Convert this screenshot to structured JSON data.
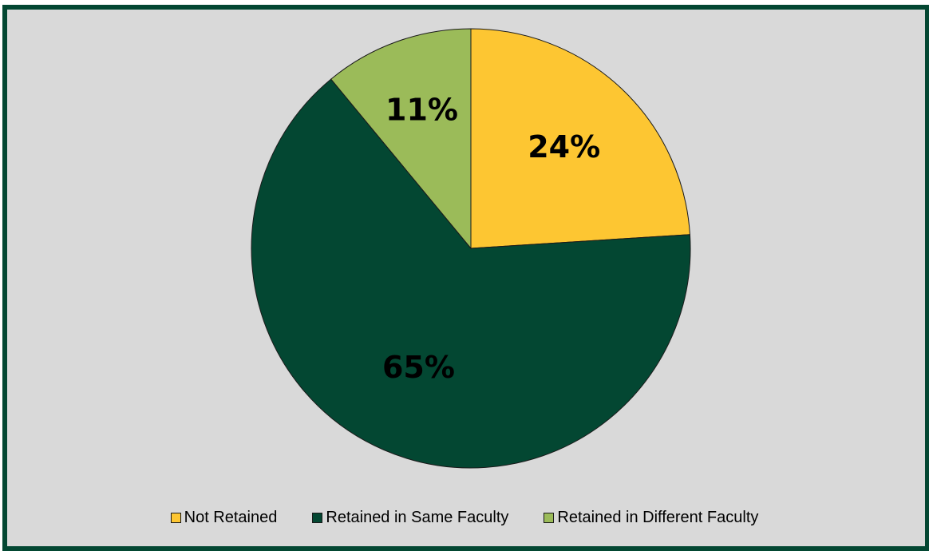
{
  "chart_data": {
    "type": "pie",
    "title": "",
    "slices": [
      {
        "label": "Not Retained",
        "value": 24,
        "value_label": "24%",
        "color": "#fdc632"
      },
      {
        "label": "Retained in Same Faculty",
        "value": 65,
        "value_label": "65%",
        "color": "#034732"
      },
      {
        "label": "Retained in Different Faculty",
        "value": 11,
        "value_label": "11%",
        "color": "#9bbb59"
      }
    ],
    "legend_position": "bottom",
    "start": "12 o'clock",
    "direction": "clockwise"
  },
  "colors": {
    "frame_border": "#034732",
    "plot_background": "#d9d9d9"
  }
}
